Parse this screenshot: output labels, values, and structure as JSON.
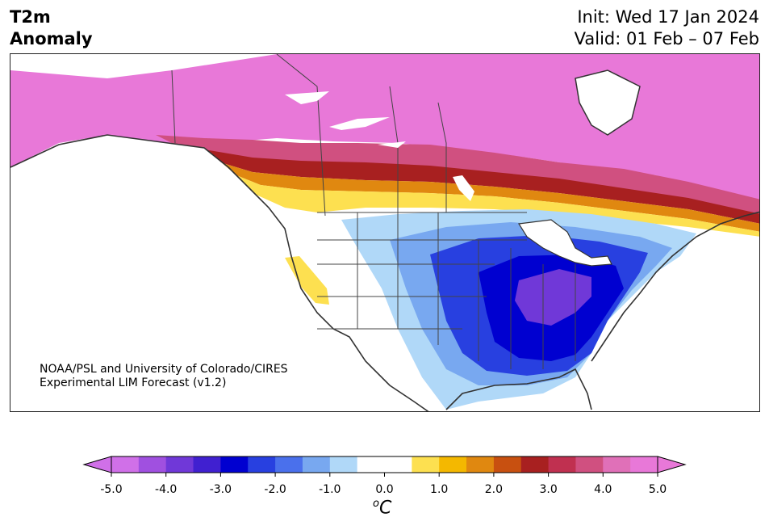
{
  "title": {
    "left_line1": "T2m",
    "left_line2": "Anomaly",
    "right_line1": "Init: Wed 17 Jan 2024",
    "right_line2": "Valid: 01 Feb – 07 Feb"
  },
  "credit": {
    "line1": "NOAA/PSL and University of Colorado/CIRES",
    "line2": "Experimental LIM Forecast (v1.2)"
  },
  "colorbar": {
    "unit_base": "C",
    "unit_sup": "o",
    "ticks": [
      "-5.0",
      "-4.0",
      "-3.0",
      "-2.0",
      "-1.0",
      "0.0",
      "1.0",
      "2.0",
      "3.0",
      "4.0",
      "5.0"
    ],
    "colors": [
      "#d070e8",
      "#a050e0",
      "#7038d8",
      "#4020d0",
      "#0000d0",
      "#2840e0",
      "#4a70ec",
      "#78a8f0",
      "#b0d8f8",
      "#ffffff",
      "#ffffff",
      "#fde050",
      "#f4b800",
      "#e08810",
      "#c85010",
      "#a82020",
      "#c03050",
      "#d05080",
      "#e070b8",
      "#e878d8"
    ]
  },
  "map_colors": {
    "hot5": "#e878d8",
    "hot4": "#d05080",
    "hot3": "#a82020",
    "hot2": "#e08810",
    "hot1": "#fde050",
    "cold1": "#b0d8f8",
    "cold2": "#78a8f0",
    "cold3": "#2840e0",
    "cold4": "#0000d0",
    "cold5": "#7038d8"
  }
}
